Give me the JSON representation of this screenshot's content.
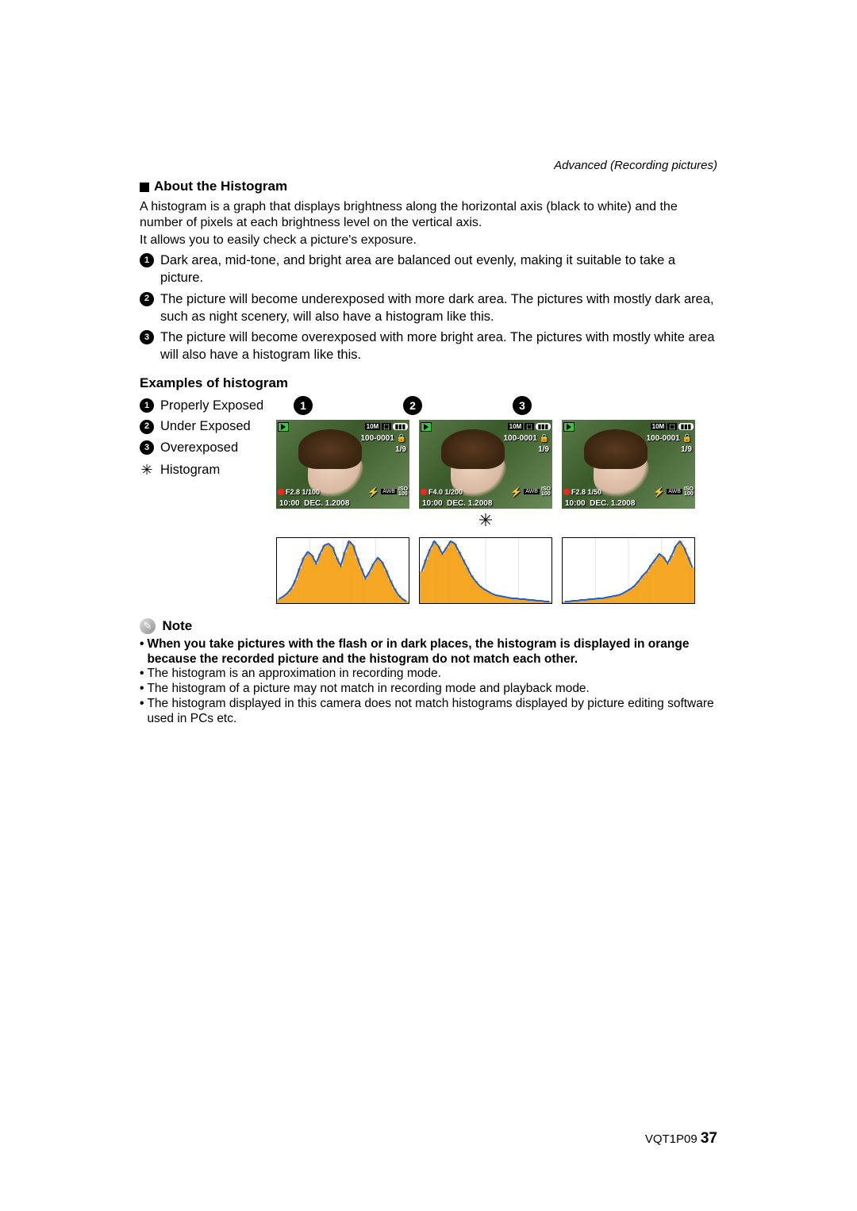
{
  "header": {
    "section": "Advanced (Recording pictures)"
  },
  "about": {
    "title": "About the Histogram",
    "p1": "A histogram is a graph that displays brightness along the horizontal axis (black to white) and the number of pixels at each brightness level on the vertical axis.",
    "p2": "It allows you to easily check a picture's exposure.",
    "items": [
      "Dark area, mid-tone, and bright area are balanced out evenly, making it suitable to take a picture.",
      "The picture will become underexposed with more dark area. The pictures with mostly dark area, such as night scenery, will also have a histogram like this.",
      "The picture will become overexposed with more bright area. The pictures with mostly white area will also have a histogram like this."
    ]
  },
  "examples": {
    "title": "Examples of histogram",
    "legend": [
      "Properly Exposed",
      "Under Exposed",
      "Overexposed",
      "Histogram"
    ]
  },
  "shots": [
    {
      "size": "10M",
      "file": "100-0001",
      "count": "1/9",
      "exposure": "F2.8 1/100",
      "time": "10:00",
      "date": "DEC. 1.2008",
      "awb": "AWB",
      "iso": "100"
    },
    {
      "size": "10M",
      "file": "100-0001",
      "count": "1/9",
      "exposure": "F4.0 1/200",
      "time": "10:00",
      "date": "DEC. 1.2008",
      "awb": "AWB",
      "iso": "100"
    },
    {
      "size": "10M",
      "file": "100-0001",
      "count": "1/9",
      "exposure": "F2.8 1/50",
      "time": "10:00",
      "date": "DEC. 1.2008",
      "awb": "AWB",
      "iso": "100"
    }
  ],
  "histograms": {
    "fill_color": "#f5a623",
    "line_color": "#2060d0",
    "line_width": 2,
    "grid_color": "#cccccc",
    "proper": [
      5,
      8,
      12,
      18,
      28,
      42,
      55,
      62,
      58,
      48,
      60,
      70,
      72,
      68,
      55,
      45,
      62,
      75,
      70,
      55,
      42,
      30,
      38,
      48,
      55,
      50,
      40,
      28,
      18,
      10,
      5,
      2
    ],
    "under": [
      40,
      55,
      68,
      78,
      72,
      62,
      70,
      78,
      75,
      65,
      55,
      45,
      35,
      28,
      22,
      18,
      15,
      12,
      10,
      9,
      8,
      7,
      6,
      6,
      5,
      5,
      4,
      4,
      3,
      3,
      2,
      2
    ],
    "over": [
      2,
      2,
      3,
      3,
      4,
      4,
      5,
      5,
      6,
      6,
      7,
      8,
      9,
      10,
      12,
      15,
      18,
      22,
      28,
      35,
      40,
      48,
      55,
      62,
      58,
      50,
      60,
      72,
      78,
      70,
      58,
      45
    ]
  },
  "note": {
    "title": "Note",
    "bold": "When you take pictures with the flash or in dark places, the histogram is displayed in orange because the recorded picture and the histogram do not match each other.",
    "items": [
      "The histogram is an approximation in recording mode.",
      "The histogram of a picture may not match in recording mode and playback mode.",
      "The histogram displayed in this camera does not match histograms displayed by picture editing software used in PCs etc."
    ]
  },
  "footer": {
    "code": "VQT1P09",
    "page": "37"
  }
}
